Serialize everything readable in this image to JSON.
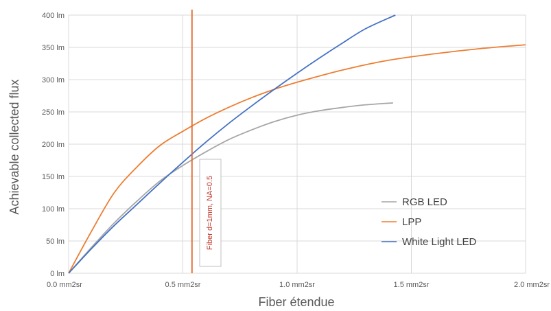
{
  "chart_data": {
    "type": "line",
    "xlabel": "Fiber étendue",
    "ylabel": "Achievable collected flux",
    "xlim": [
      0,
      2.0
    ],
    "ylim": [
      0,
      400
    ],
    "grid": true,
    "legend_position": "bottom-right",
    "x_ticks": [
      {
        "value": 0.0,
        "label": "0.0 mm2sr"
      },
      {
        "value": 0.5,
        "label": "0.5 mm2sr"
      },
      {
        "value": 1.0,
        "label": "1.0 mm2sr"
      },
      {
        "value": 1.5,
        "label": "1.5 mm2sr"
      },
      {
        "value": 2.0,
        "label": "2.0 mm2sr"
      }
    ],
    "y_ticks": [
      {
        "value": 0,
        "label": "0 lm"
      },
      {
        "value": 50,
        "label": "50 lm"
      },
      {
        "value": 100,
        "label": "100 lm"
      },
      {
        "value": 150,
        "label": "150 lm"
      },
      {
        "value": 200,
        "label": "200 lm"
      },
      {
        "value": 250,
        "label": "250 lm"
      },
      {
        "value": 300,
        "label": "300 lm"
      },
      {
        "value": 350,
        "label": "350 lm"
      },
      {
        "value": 400,
        "label": "400 lm"
      }
    ],
    "series": [
      {
        "name": "RGB LED",
        "color": "#a6a6a6",
        "points": [
          [
            0,
            0
          ],
          [
            0.1,
            40
          ],
          [
            0.2,
            78
          ],
          [
            0.3,
            112
          ],
          [
            0.4,
            143
          ],
          [
            0.5,
            167
          ],
          [
            0.6,
            188
          ],
          [
            0.7,
            207
          ],
          [
            0.8,
            222
          ],
          [
            0.9,
            235
          ],
          [
            1.0,
            245
          ],
          [
            1.1,
            252
          ],
          [
            1.2,
            257
          ],
          [
            1.3,
            261
          ],
          [
            1.42,
            264
          ]
        ]
      },
      {
        "name": "LPP",
        "color": "#ed7d31",
        "points": [
          [
            0,
            0
          ],
          [
            0.1,
            65
          ],
          [
            0.2,
            125
          ],
          [
            0.3,
            165
          ],
          [
            0.4,
            198
          ],
          [
            0.5,
            220
          ],
          [
            0.6,
            240
          ],
          [
            0.7,
            257
          ],
          [
            0.8,
            272
          ],
          [
            0.9,
            285
          ],
          [
            1.0,
            296
          ],
          [
            1.2,
            315
          ],
          [
            1.4,
            330
          ],
          [
            1.6,
            340
          ],
          [
            1.8,
            348
          ],
          [
            2.0,
            354
          ]
        ]
      },
      {
        "name": "White Light LED",
        "color": "#4472c4",
        "points": [
          [
            0,
            0
          ],
          [
            0.1,
            38
          ],
          [
            0.2,
            74
          ],
          [
            0.3,
            107
          ],
          [
            0.4,
            140
          ],
          [
            0.5,
            172
          ],
          [
            0.6,
            203
          ],
          [
            0.7,
            232
          ],
          [
            0.8,
            259
          ],
          [
            0.9,
            285
          ],
          [
            1.0,
            310
          ],
          [
            1.1,
            334
          ],
          [
            1.2,
            357
          ],
          [
            1.3,
            379
          ],
          [
            1.43,
            400
          ]
        ]
      }
    ],
    "annotations": [
      {
        "type": "vertical-line",
        "x": 0.54,
        "color": "#e06a2c",
        "label": "Fiber d=1mm, NA=0.5",
        "label_color": "#c0392b"
      }
    ]
  }
}
